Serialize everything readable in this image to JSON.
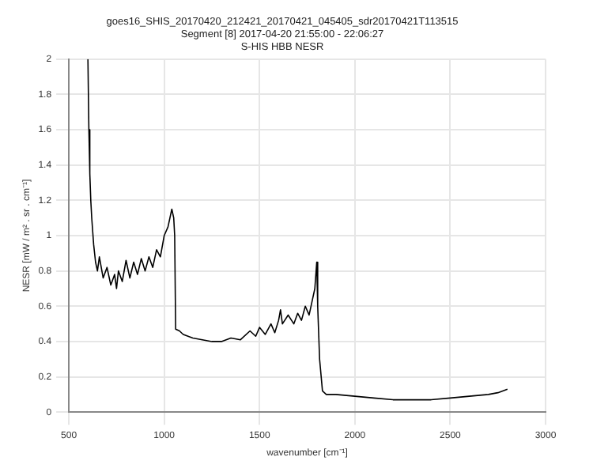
{
  "chart_data": {
    "type": "line",
    "title": [
      "goes16_SHIS_20170420_212421_20170421_045405_sdr20170421T113515",
      "Segment [8] 2017-04-20 21:55:00 - 22:06:27",
      "S-HIS HBB NESR"
    ],
    "xlabel": "wavenumber [cm⁻¹]",
    "ylabel": "NESR [mW / m² . sr . cm⁻¹]",
    "xlim": [
      500,
      3000
    ],
    "xticks": [
      500,
      1000,
      1500,
      2000,
      2500,
      3000
    ],
    "ylim": [
      0,
      2
    ],
    "yticks": [
      0,
      0.2,
      0.4,
      0.6,
      0.8,
      1,
      1.2,
      1.4,
      1.6,
      1.8,
      2
    ],
    "grid": true,
    "legend": false,
    "marker": "none",
    "line_style": "solid",
    "series": [
      {
        "color": "#000000",
        "x": [
          600,
          605,
          610,
          615,
          620,
          630,
          640,
          650,
          660,
          680,
          700,
          720,
          740,
          750,
          760,
          780,
          800,
          820,
          840,
          860,
          880,
          900,
          920,
          940,
          960,
          980,
          1000,
          1020,
          1040,
          1050,
          1055,
          1060,
          1080,
          1100,
          1150,
          1200,
          1250,
          1300,
          1350,
          1400,
          1450,
          1480,
          1500,
          1530,
          1560,
          1580,
          1600,
          1610,
          1620,
          1650,
          1680,
          1700,
          1720,
          1740,
          1760,
          1780,
          1790,
          1800,
          1805,
          1815,
          1830,
          1850,
          1900,
          2000,
          2100,
          2200,
          2300,
          2400,
          2500,
          2600,
          2700,
          2750,
          2800
        ],
        "values": [
          2.0,
          1.6,
          1.35,
          1.2,
          1.1,
          0.95,
          0.85,
          0.8,
          0.88,
          0.76,
          0.82,
          0.72,
          0.78,
          0.7,
          0.8,
          0.74,
          0.86,
          0.76,
          0.85,
          0.78,
          0.87,
          0.8,
          0.88,
          0.82,
          0.92,
          0.88,
          1.0,
          1.05,
          1.15,
          1.1,
          1.0,
          0.47,
          0.46,
          0.44,
          0.42,
          0.41,
          0.4,
          0.4,
          0.42,
          0.41,
          0.46,
          0.43,
          0.48,
          0.44,
          0.5,
          0.45,
          0.52,
          0.58,
          0.5,
          0.55,
          0.5,
          0.56,
          0.52,
          0.6,
          0.55,
          0.65,
          0.7,
          0.85,
          0.6,
          0.3,
          0.12,
          0.1,
          0.1,
          0.09,
          0.08,
          0.07,
          0.07,
          0.07,
          0.08,
          0.09,
          0.1,
          0.11,
          0.13
        ]
      }
    ]
  }
}
